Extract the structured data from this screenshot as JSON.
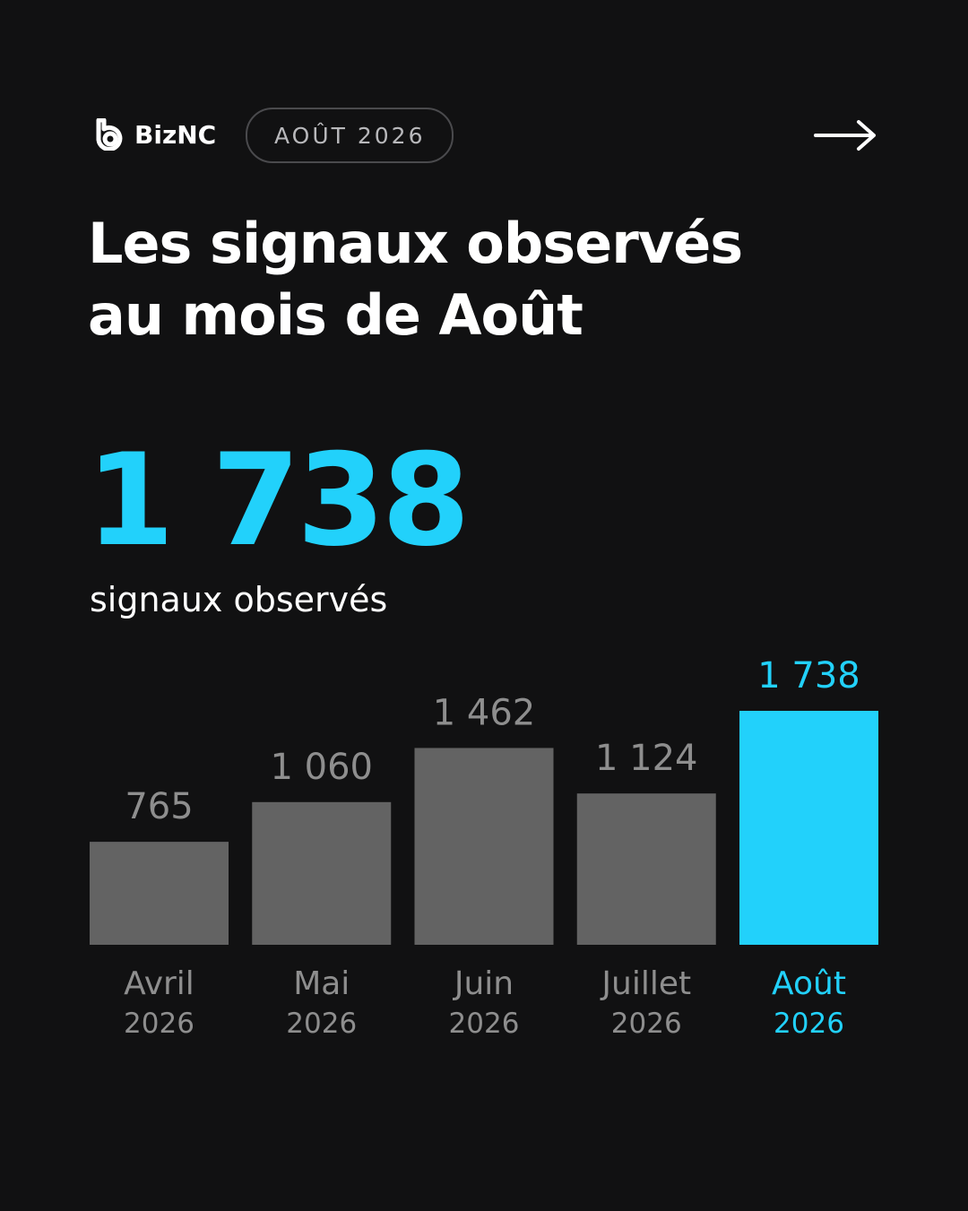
{
  "header": {
    "brand": "BizNC",
    "date_badge": "AOÛT 2026",
    "next_icon": "arrow-right-icon",
    "logo_icon": "biznc-logo-icon"
  },
  "title": {
    "line1": "Les signaux observés",
    "line2": "au mois de Août"
  },
  "highlight": {
    "value": "1 738",
    "caption": "signaux observés"
  },
  "colors": {
    "background": "#111112",
    "accent": "#22d1fb",
    "bar": "#636363",
    "muted_label": "#8e8e8e"
  },
  "chart_data": {
    "type": "bar",
    "categories": [
      "Avril",
      "Mai",
      "Juin",
      "Juillet",
      "Août"
    ],
    "sublabels": [
      "2026",
      "2026",
      "2026",
      "2026",
      "2026"
    ],
    "values": [
      765,
      1060,
      1462,
      1124,
      1738
    ],
    "value_labels": [
      "765",
      "1 060",
      "1 462",
      "1 124",
      "1 738"
    ],
    "highlight_index": 4,
    "ylim": [
      0,
      1738
    ],
    "grid": false,
    "legend": "none"
  }
}
